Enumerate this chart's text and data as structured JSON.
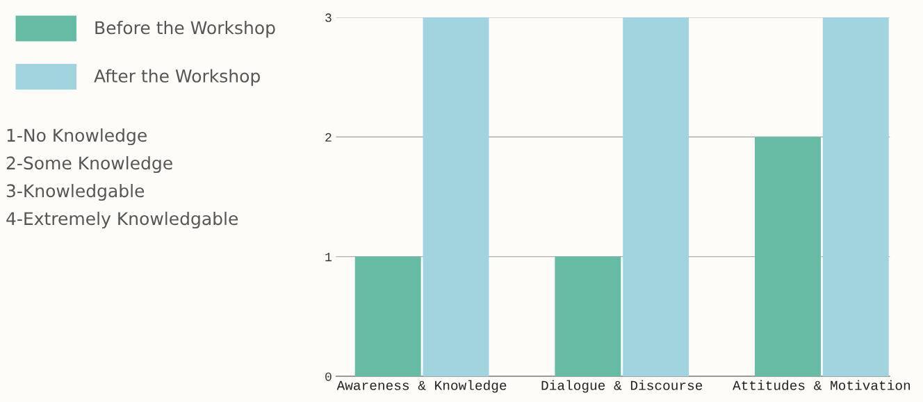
{
  "chart_data": {
    "type": "bar",
    "categories": [
      "Awareness & Knowledge",
      "Dialogue & Discourse",
      "Attitudes & Motivation"
    ],
    "series": [
      {
        "name": "Before the Workshop",
        "color": "#66bba5",
        "values": [
          1,
          1,
          2
        ]
      },
      {
        "name": "After the Workshop",
        "color": "#a1d4df",
        "values": [
          3,
          3,
          3
        ]
      }
    ],
    "ylim": [
      0,
      3
    ],
    "yticks": [
      0,
      1,
      2,
      3
    ],
    "grid": "y",
    "legend": "left",
    "annotations": [
      "1-No Knowledge",
      "2-Some Knowledge",
      "3-Knowledgable",
      "4-Extremely Knowledgable"
    ]
  }
}
